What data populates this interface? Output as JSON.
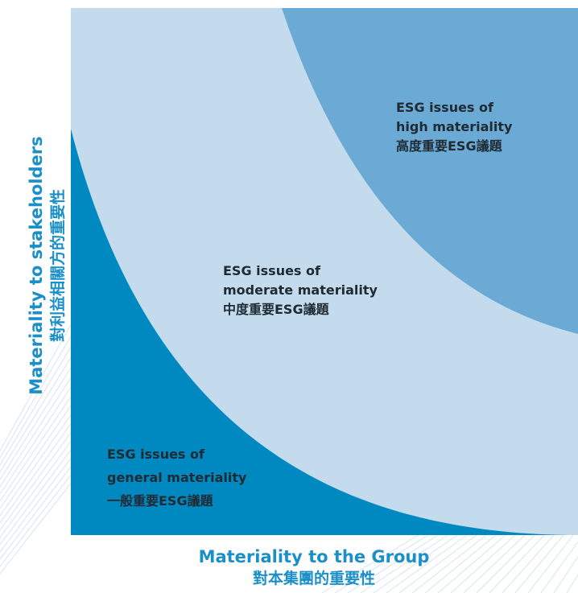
{
  "colors": {
    "general": "#0089c0",
    "moderate": "#c3dbec",
    "high": "#6aaad5",
    "axis_text": "#1a8fc8",
    "label_text": "#1f2a33",
    "decor_lines": "#d7e3ee"
  },
  "zones": {
    "high": {
      "line1": "ESG issues of",
      "line2": "high materiality",
      "line3": "高度重要ESG議題"
    },
    "moderate": {
      "line1": "ESG issues of",
      "line2": "moderate materiality",
      "line3": "中度重要ESG議題"
    },
    "general": {
      "line1": "ESG issues of",
      "line2": "general materiality",
      "line3": "一般重要ESG議題"
    }
  },
  "axes": {
    "x": {
      "en": "Materiality to the Group",
      "zh": "對本集團的重要性"
    },
    "y": {
      "en": "Materiality to stakeholders",
      "zh": "對利益相關方的重要性"
    }
  }
}
